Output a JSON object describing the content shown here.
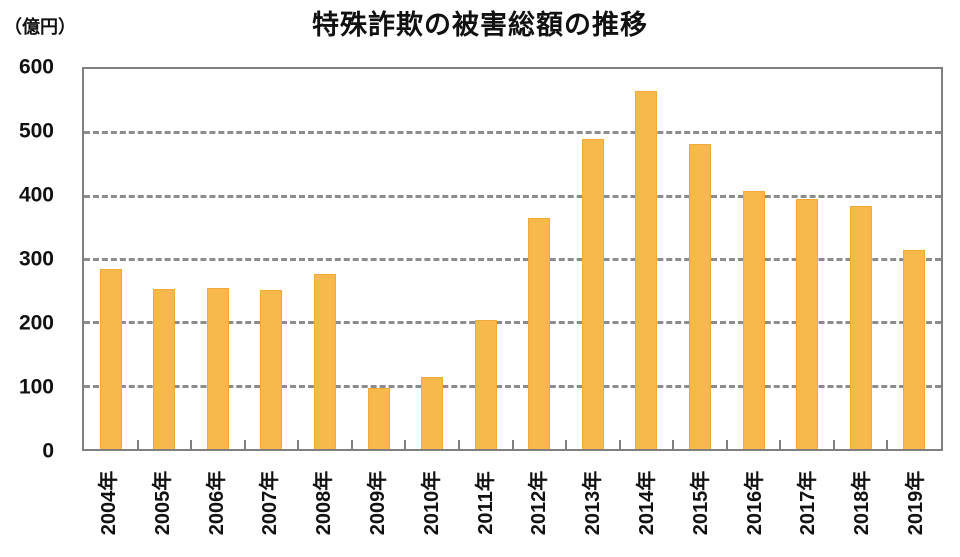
{
  "title": "特殊詐欺の被害総額の推移",
  "y_axis_unit": "（億円）",
  "chart_data": {
    "type": "bar",
    "title": "特殊詐欺の被害総額の推移",
    "ylabel": "（億円）",
    "xlabel": "",
    "categories": [
      "2004年",
      "2005年",
      "2006年",
      "2007年",
      "2008年",
      "2009年",
      "2010年",
      "2011年",
      "2012年",
      "2013年",
      "2014年",
      "2015年",
      "2016年",
      "2017年",
      "2018年",
      "2019年"
    ],
    "values": [
      284,
      252,
      255,
      251,
      276,
      96,
      113,
      204,
      364,
      489,
      566,
      482,
      408,
      395,
      383,
      315
    ],
    "ylim": [
      0,
      600
    ],
    "yticks": [
      0,
      100,
      200,
      300,
      400,
      500,
      600
    ],
    "gridline_values": [
      100,
      200,
      300,
      400,
      500
    ],
    "grid": "horizontal-dashed",
    "legend": "none",
    "bar_color": "#F8B94C",
    "bar_border_color": "#F2A93C",
    "axis_color": "#808080",
    "gridline_color": "#8C8C8C",
    "text_color": "#111111"
  }
}
